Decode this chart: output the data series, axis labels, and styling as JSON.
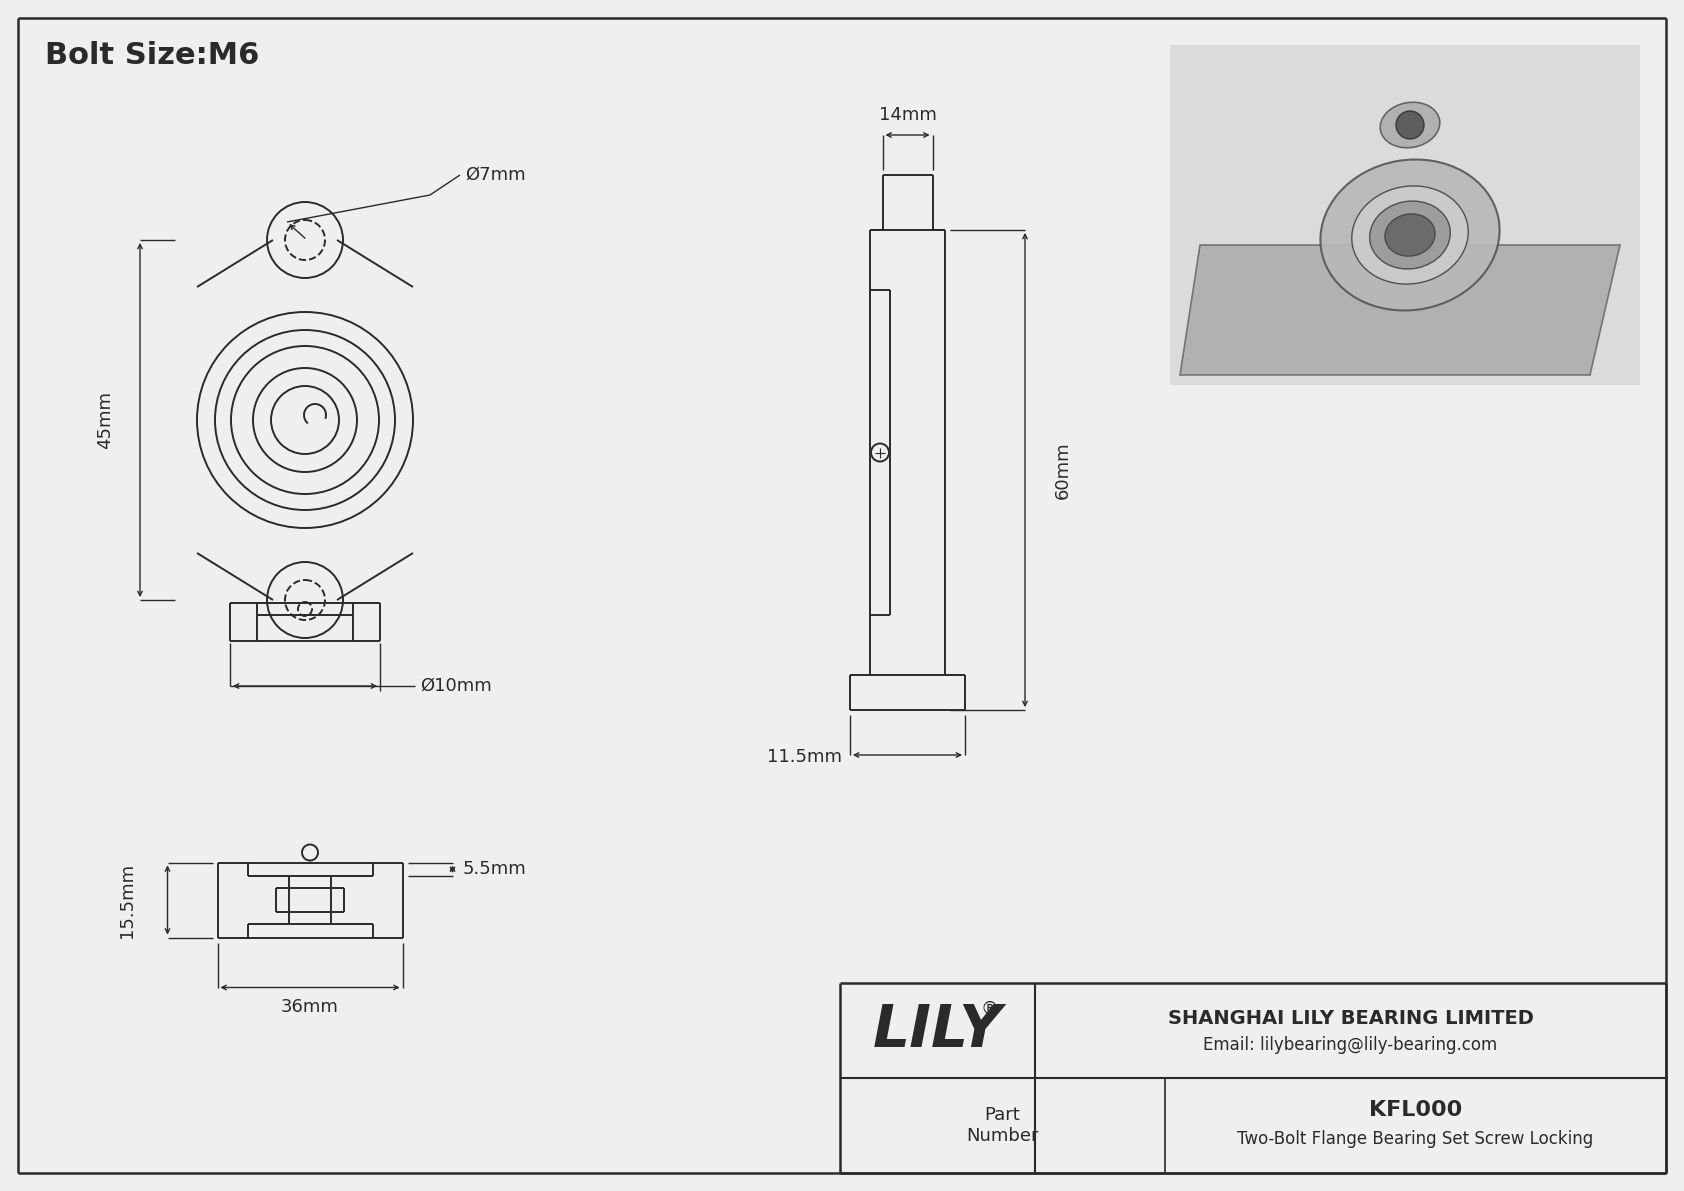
{
  "bg_color": "#efefef",
  "line_color": "#2a2a2a",
  "title": "Bolt Size:M6",
  "company": "SHANGHAI LILY BEARING LIMITED",
  "email": "Email: lilybearing@lily-bearing.com",
  "part_number_label": "Part\nNumber",
  "part_number": "KFL000",
  "part_desc": "Two-Bolt Flange Bearing Set Screw Locking",
  "brand": "LILY",
  "dims": {
    "bolt_hole_dia": "Ø7mm",
    "shaft_dia": "Ø10mm",
    "height": "45mm",
    "width_side": "14mm",
    "depth": "60mm",
    "flange_thickness": "11.5mm",
    "base_height": "15.5mm",
    "base_width": "36mm",
    "shaft_step": "5.5mm"
  }
}
